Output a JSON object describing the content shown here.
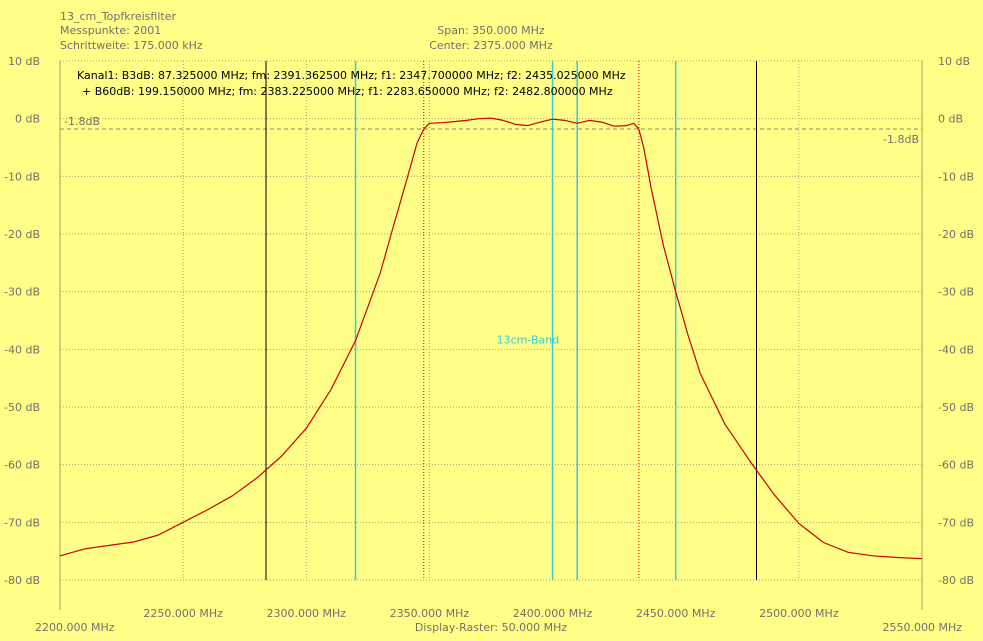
{
  "header": {
    "title": "13_cm_Topfkreisfilter",
    "messpunkte": "Messpunkte: 2001",
    "schrittweite": "Schrittweite: 175.000 kHz",
    "span": "Span: 350.000 MHz",
    "center": "Center: 2375.000 MHz"
  },
  "info": {
    "line1": "Kanal1: B3dB: 87.325000 MHz; fm: 2391.362500 MHz; f1: 2347.700000 MHz; f2: 2435.025000 MHz",
    "line2": "+ B60dB: 199.150000 MHz; fm: 2383.225000 MHz; f1: 2283.650000 MHz; f2: 2482.800000 MHz"
  },
  "footer": {
    "raster": "Display-Raster: 50.000 MHz"
  },
  "colors": {
    "background": "#FFFF88",
    "trace": "#CC0000",
    "band_markers": "#33CCDD",
    "b60_markers": "#000000",
    "b3_markers": "#CC0000",
    "grid": "#A0A070"
  },
  "chart_data": {
    "type": "line",
    "title": "13_cm_Topfkreisfilter",
    "xlim": [
      2200,
      2550
    ],
    "ylim": [
      -80,
      10
    ],
    "grid": true,
    "x_unit": "MHz",
    "y_unit": "dB",
    "x_ticks": [
      {
        "value": 2200,
        "label": "2200.000 MHz"
      },
      {
        "value": 2250,
        "label": "2250.000 MHz"
      },
      {
        "value": 2300,
        "label": "2300.000 MHz"
      },
      {
        "value": 2350,
        "label": "2350.000 MHz"
      },
      {
        "value": 2400,
        "label": "2400.000 MHz"
      },
      {
        "value": 2450,
        "label": "2450.000 MHz"
      },
      {
        "value": 2500,
        "label": "2500.000 MHz"
      },
      {
        "value": 2550,
        "label": "2550.000 MHz"
      }
    ],
    "y_ticks": [
      {
        "value": 10,
        "label": "10 dB"
      },
      {
        "value": 0,
        "label": "0 dB"
      },
      {
        "value": -10,
        "label": "-10 dB"
      },
      {
        "value": -20,
        "label": "-20 dB"
      },
      {
        "value": -30,
        "label": "-30 dB"
      },
      {
        "value": -40,
        "label": "-40 dB"
      },
      {
        "value": -50,
        "label": "-50 dB"
      },
      {
        "value": -60,
        "label": "-60 dB"
      },
      {
        "value": -70,
        "label": "-70 dB"
      },
      {
        "value": -80,
        "label": "-80 dB"
      }
    ],
    "reference_level": {
      "value": -1.8,
      "label": "-1.8dB"
    },
    "band_lines": [
      2320,
      2400,
      2410,
      2450
    ],
    "band_label": {
      "text": "13cm-Band",
      "x": 2390,
      "y": -39
    },
    "b60_lines": [
      2283.65,
      2482.8
    ],
    "b3_lines": [
      2347.7,
      2435.025
    ],
    "series": [
      {
        "x": [
          2200,
          2210,
          2220,
          2230,
          2240,
          2250,
          2260,
          2270,
          2280,
          2290,
          2300,
          2310,
          2320,
          2330,
          2335,
          2340,
          2345,
          2347.7,
          2350,
          2355,
          2360,
          2365,
          2370,
          2375,
          2380,
          2385,
          2390,
          2395,
          2400,
          2405,
          2410,
          2415,
          2420,
          2425,
          2430,
          2433,
          2435,
          2437,
          2440,
          2445,
          2450,
          2455,
          2460,
          2470,
          2480,
          2490,
          2500,
          2510,
          2520,
          2530,
          2540,
          2550
        ],
        "y": [
          -75.8,
          -74.6,
          -74,
          -73.4,
          -72.2,
          -70,
          -67.8,
          -65.4,
          -62.3,
          -58.5,
          -53.7,
          -47,
          -38.5,
          -26.8,
          -19.2,
          -11.8,
          -4.2,
          -1.8,
          -0.8,
          -0.7,
          -0.5,
          -0.3,
          0,
          0.1,
          -0.3,
          -1,
          -1.2,
          -0.6,
          -0.1,
          -0.3,
          -0.8,
          -0.3,
          -0.6,
          -1.3,
          -1.2,
          -0.8,
          -1.8,
          -5,
          -12,
          -22,
          -30,
          -37.5,
          -44.2,
          -53,
          -59.3,
          -65.2,
          -70.2,
          -73.5,
          -75.2,
          -75.8,
          -76.1,
          -76.3
        ]
      }
    ]
  }
}
